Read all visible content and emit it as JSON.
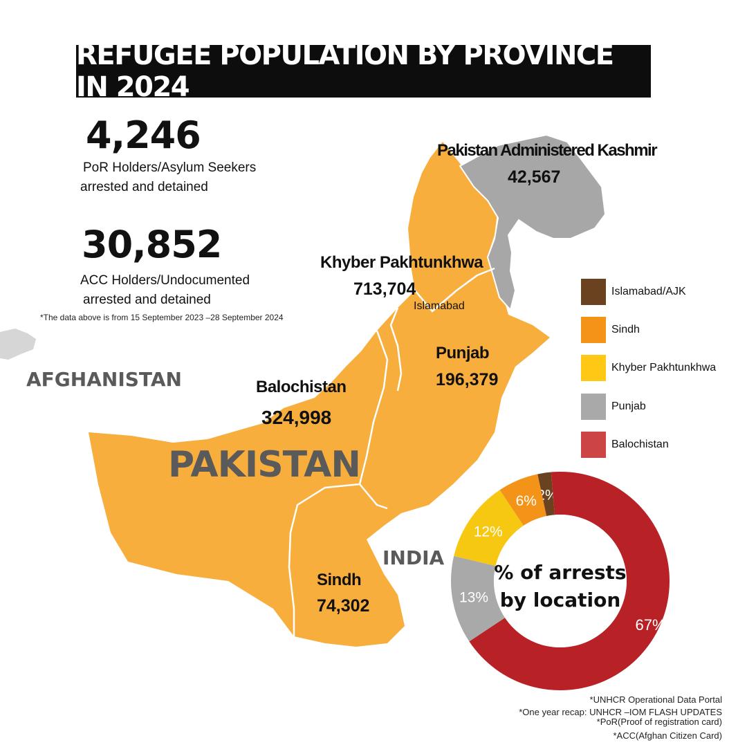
{
  "title": "REFUGEE POPULATION BY PROVINCE IN 2024",
  "stats": [
    {
      "value": "4,246",
      "line1": "PoR Holders/Asylum Seekers",
      "line2": "arrested and detained"
    },
    {
      "value": "30,852",
      "line1": "ACC Holders/Undocumented",
      "line2": "arrested and detained"
    }
  ],
  "stats_note": "*The data above is from 15 September 2023 –28 September 2024",
  "map": {
    "countries": {
      "afghanistan": "AFGHANISTAN",
      "pakistan": "PAKISTAN",
      "india": "INDIA"
    },
    "city": "Islamabad",
    "colors": {
      "pakistan_fill": "#F8AE3C",
      "kashmir_fill": "#A7A7A7",
      "neighbor_fill": "#D6D6D6",
      "border": "#ffffff"
    },
    "provinces": [
      {
        "name": "Pakistan Administered Kashmir",
        "value": "42,567"
      },
      {
        "name": "Khyber Pakhtunkhwa",
        "value": "713,704"
      },
      {
        "name": "Punjab",
        "value": "196,379"
      },
      {
        "name": "Balochistan",
        "value": "324,998"
      },
      {
        "name": "Sindh",
        "value": "74,302"
      }
    ]
  },
  "legend": [
    {
      "label": "Islamabad/AJK",
      "color": "#6B4220"
    },
    {
      "label": "Sindh",
      "color": "#F39318"
    },
    {
      "label": "Khyber Pakhtunkhwa",
      "color": "#FFC814"
    },
    {
      "label": "Punjab",
      "color": "#A9A9A9"
    },
    {
      "label": "Balochistan",
      "color": "#CC4444"
    }
  ],
  "chart_data": {
    "type": "pie",
    "title": "% of  arrests by location",
    "title_lines": [
      "% of  arrests",
      "by location"
    ],
    "slices": [
      {
        "label": "Islamabad/AJK",
        "value": 2,
        "text": "2%",
        "color": "#6B4220"
      },
      {
        "label": "Balochistan",
        "value": 67,
        "text": "67%",
        "color": "#B82227"
      },
      {
        "label": "Punjab",
        "value": 13,
        "text": "13%",
        "color": "#A9A9A9"
      },
      {
        "label": "Khyber Pakhtunkhwa",
        "value": 12,
        "text": "12%",
        "color": "#F7C812"
      },
      {
        "label": "Sindh",
        "value": 6,
        "text": "6%",
        "color": "#F39318"
      }
    ]
  },
  "sources": [
    "*UNHCR Operational Data Portal",
    "*One year recap: UNHCR –IOM FLASH UPDATES",
    "*PoR(Proof of registration card)",
    "*ACC(Afghan Citizen Card)"
  ]
}
